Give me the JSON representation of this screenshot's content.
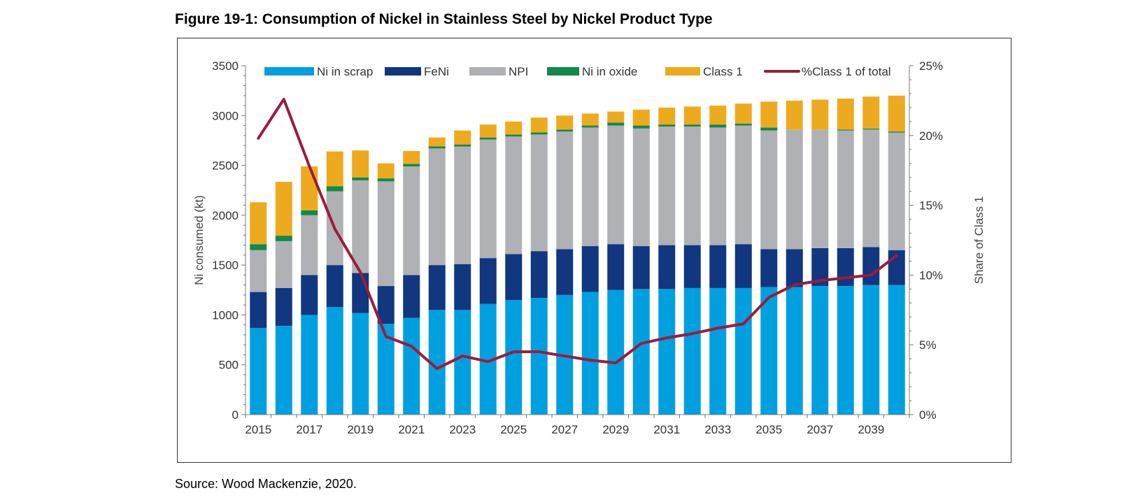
{
  "figure_title": "Figure 19-1:  Consumption of Nickel in Stainless Steel by Nickel Product Type",
  "source": "Source: Wood Mackenzie, 2020.",
  "chart_data": {
    "type": "bar",
    "stacked": true,
    "title": "Figure 19-1:  Consumption of Nickel in Stainless Steel by Nickel Product Type",
    "ylabel": "Ni consumed (kt)",
    "y2label": "Share of Class 1",
    "ylim": [
      0,
      3500
    ],
    "y2lim": [
      0,
      25
    ],
    "yticks": [
      0,
      500,
      1000,
      1500,
      2000,
      2500,
      3000,
      3500
    ],
    "y2ticks": [
      "0%",
      "5%",
      "10%",
      "15%",
      "20%",
      "25%"
    ],
    "x_tick_labels": [
      "2015",
      "2017",
      "2019",
      "2021",
      "2023",
      "2025",
      "2027",
      "2029",
      "2031",
      "2033",
      "2035",
      "2037",
      "2039"
    ],
    "categories": [
      "2015",
      "2016",
      "2017",
      "2018",
      "2019",
      "2020",
      "2021",
      "2022",
      "2023",
      "2024",
      "2025",
      "2026",
      "2027",
      "2028",
      "2029",
      "2030",
      "2031",
      "2032",
      "2033",
      "2034",
      "2035",
      "2036",
      "2037",
      "2038",
      "2039",
      "2040"
    ],
    "series": [
      {
        "name": "Ni in scrap",
        "color": "#00a0e0",
        "values": [
          870,
          890,
          1000,
          1080,
          1020,
          910,
          970,
          1050,
          1050,
          1110,
          1150,
          1170,
          1200,
          1230,
          1250,
          1260,
          1260,
          1270,
          1270,
          1270,
          1280,
          1280,
          1290,
          1290,
          1300,
          1300
        ]
      },
      {
        "name": "FeNi",
        "color": "#10377f",
        "values": [
          360,
          380,
          400,
          420,
          400,
          380,
          430,
          450,
          460,
          460,
          460,
          470,
          460,
          460,
          460,
          430,
          440,
          430,
          430,
          440,
          380,
          380,
          380,
          380,
          380,
          350
        ]
      },
      {
        "name": "NPI",
        "color": "#afb1b4",
        "values": [
          420,
          470,
          600,
          740,
          930,
          1050,
          1090,
          1170,
          1180,
          1190,
          1180,
          1170,
          1180,
          1190,
          1190,
          1180,
          1190,
          1190,
          1180,
          1190,
          1190,
          1200,
          1190,
          1180,
          1180,
          1180
        ]
      },
      {
        "name": "Ni in oxide",
        "color": "#12894a",
        "values": [
          60,
          55,
          50,
          50,
          30,
          30,
          25,
          20,
          20,
          20,
          20,
          20,
          20,
          20,
          30,
          30,
          20,
          20,
          30,
          20,
          30,
          0,
          0,
          10,
          10,
          10
        ]
      },
      {
        "name": "Class 1",
        "color": "#eeaa1e",
        "values": [
          420,
          540,
          440,
          350,
          270,
          150,
          130,
          90,
          140,
          130,
          130,
          150,
          140,
          120,
          110,
          160,
          170,
          180,
          190,
          200,
          260,
          290,
          300,
          310,
          320,
          360
        ]
      }
    ],
    "line_series": {
      "name": "%Class 1 of total",
      "color": "#9b1c3e",
      "axis": "right",
      "values": [
        19.8,
        22.6,
        17.8,
        13.3,
        10.2,
        5.6,
        4.9,
        3.3,
        4.2,
        3.8,
        4.5,
        4.5,
        4.2,
        3.9,
        3.7,
        5.1,
        5.5,
        5.8,
        6.2,
        6.5,
        8.4,
        9.3,
        9.6,
        9.8,
        10.0,
        11.4
      ]
    },
    "legend": [
      "Ni in scrap",
      "FeNi",
      "NPI",
      "Ni in oxide",
      "Class 1",
      "%Class 1 of total"
    ],
    "legend_position": "top",
    "grid": false
  }
}
